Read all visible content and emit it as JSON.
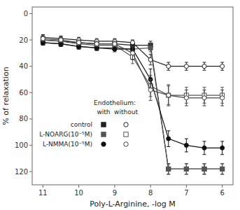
{
  "chart_data": {
    "type": "line",
    "x_label": "Poly-L-Arginine, -log M",
    "y_label": "% of relaxation",
    "x": [
      11,
      10.5,
      10,
      9.5,
      9,
      8.5,
      8,
      7.5,
      7,
      6.5,
      6
    ],
    "xlim": [
      11.3,
      5.7
    ],
    "ylim": [
      130,
      -5
    ],
    "xticks": [
      11,
      10,
      9,
      8,
      7,
      6
    ],
    "yticks": [
      0,
      20,
      40,
      60,
      80,
      100,
      120
    ],
    "grid": false,
    "legend": "lower left",
    "legend_title": "Endothelium:",
    "series": [
      {
        "name": "control",
        "endothelium": "with",
        "color": "#222222",
        "marker": "filled-square",
        "values": [
          20,
          21,
          22,
          23,
          23,
          24,
          24,
          118,
          118,
          118,
          118
        ],
        "yerr": [
          2,
          2,
          2,
          2,
          2,
          2,
          3,
          4,
          4,
          4,
          4
        ]
      },
      {
        "name": "control",
        "endothelium": "without",
        "color": "#222222",
        "marker": "open-circle",
        "values": [
          18,
          19,
          20,
          21,
          21,
          22,
          35,
          40,
          40,
          40,
          40
        ],
        "yerr": [
          2,
          2,
          2,
          2,
          2,
          2,
          4,
          3,
          3,
          3,
          3
        ]
      },
      {
        "name": "L-NOARG(10⁻⁵M)",
        "endothelium": "with",
        "color": "#555555",
        "marker": "filled-square",
        "values": [
          22,
          23,
          25,
          26,
          26,
          27,
          26,
          118,
          118,
          118,
          118
        ],
        "yerr": [
          2,
          2,
          2,
          2,
          2,
          2,
          3,
          4,
          4,
          4,
          4
        ]
      },
      {
        "name": "L-NOARG(10⁻⁵M)",
        "endothelium": "without",
        "color": "#555555",
        "marker": "open-square",
        "values": [
          20,
          21,
          23,
          24,
          24,
          33,
          55,
          62,
          62,
          62,
          62
        ],
        "yerr": [
          2,
          2,
          2,
          2,
          2,
          5,
          8,
          7,
          6,
          6,
          6
        ]
      },
      {
        "name": "L-NMMA(10⁻⁵M)",
        "endothelium": "with",
        "color": "#111111",
        "marker": "filled-circle",
        "values": [
          22,
          23,
          25,
          26,
          27,
          27,
          50,
          95,
          100,
          102,
          102
        ],
        "yerr": [
          2,
          2,
          2,
          2,
          2,
          2,
          8,
          6,
          5,
          5,
          5
        ]
      },
      {
        "name": "L-NMMA(10⁻⁵M)",
        "endothelium": "without",
        "color": "#444444",
        "marker": "open-circle",
        "values": [
          19,
          20,
          22,
          23,
          23,
          30,
          58,
          62,
          64,
          64,
          64
        ],
        "yerr": [
          2,
          2,
          2,
          2,
          2,
          5,
          8,
          8,
          6,
          6,
          6
        ]
      }
    ]
  }
}
